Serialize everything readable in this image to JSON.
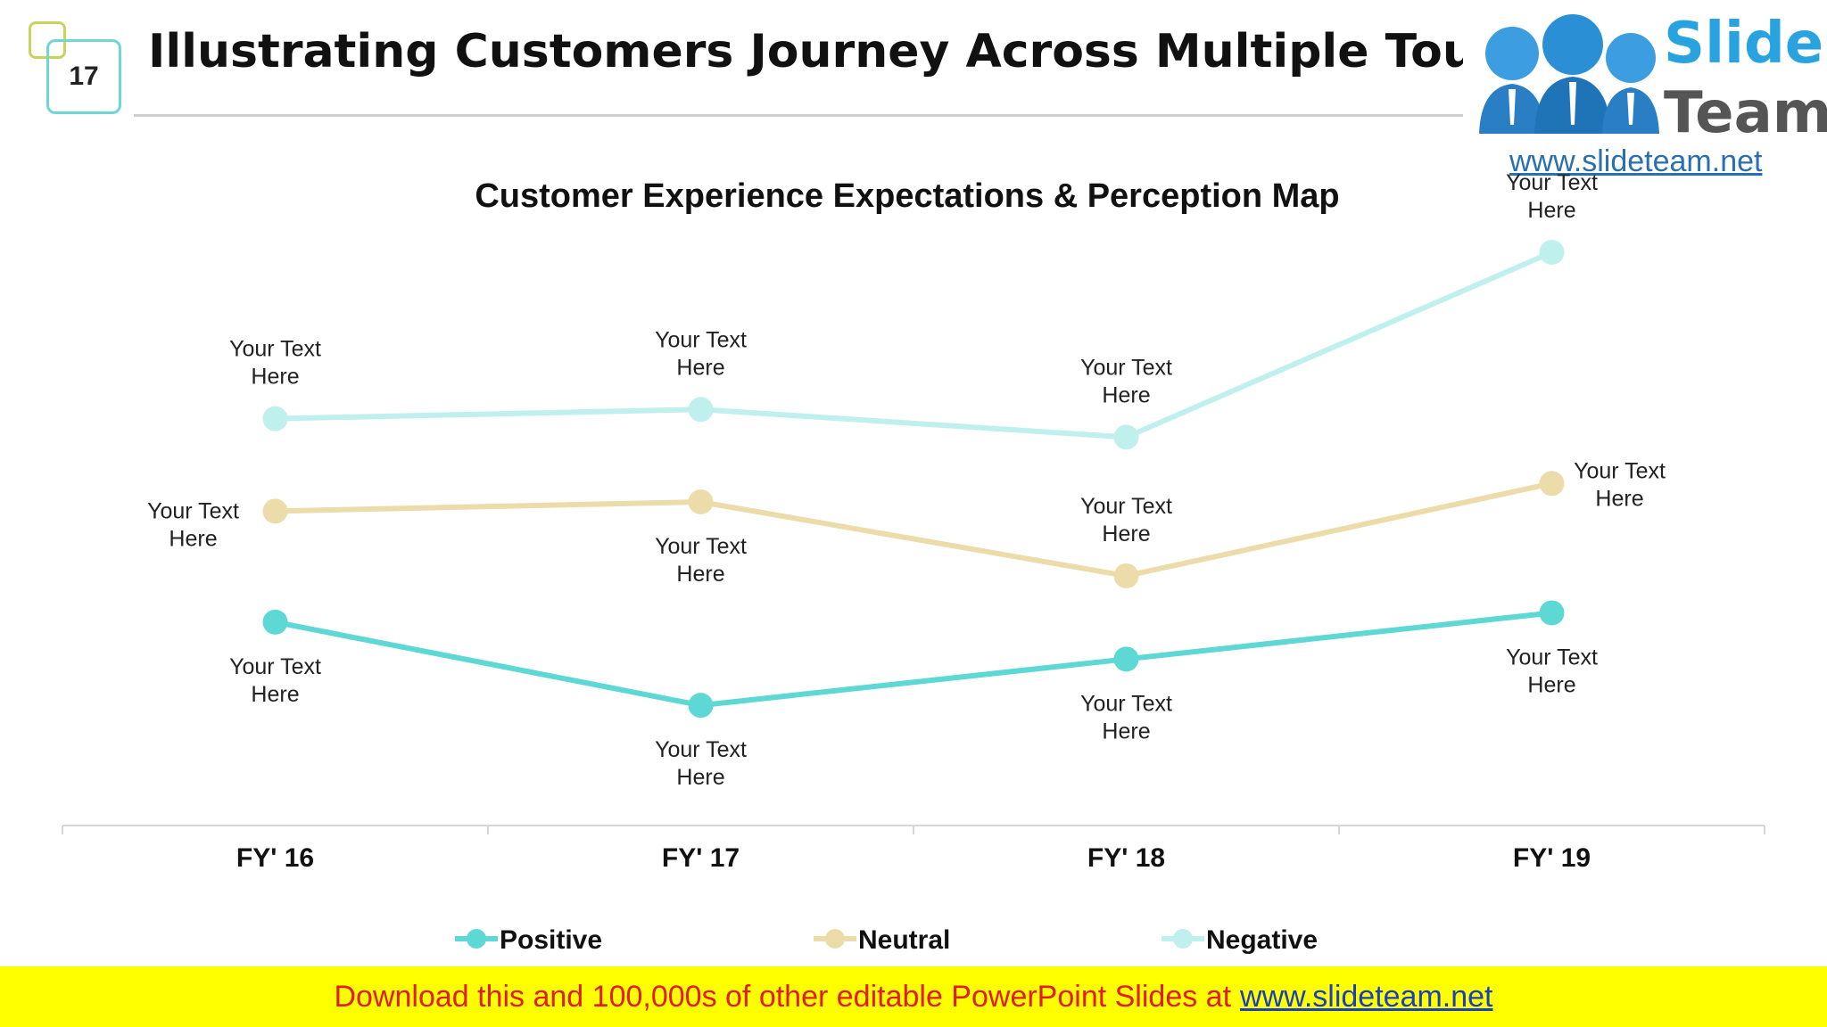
{
  "slide": {
    "number": "17",
    "title": "Illustrating Customers Journey Across Multiple Touchpoints"
  },
  "logo": {
    "word1": "Slide",
    "word2": "Team",
    "url": "www.slideteam.net"
  },
  "footer": {
    "text": "Download this and 100,000s of other editable PowerPoint Slides at",
    "link": "www.slideteam.net"
  },
  "colors": {
    "positive": "#5dd8d4",
    "neutral": "#ecdcaa",
    "negative": "#bff0ee"
  },
  "chart_data": {
    "type": "line",
    "title": "Customer Experience Expectations & Perception Map",
    "categories": [
      "FY' 16",
      "FY' 17",
      "FY' 18",
      "FY' 19"
    ],
    "series": [
      {
        "name": "Positive",
        "values": [
          2.2,
          1.3,
          1.8,
          2.3
        ],
        "labels": [
          "Your Text Here",
          "Your Text Here",
          "Your Text Here",
          "Your Text Here"
        ]
      },
      {
        "name": "Neutral",
        "values": [
          3.4,
          3.5,
          2.7,
          3.7
        ],
        "labels": [
          "Your Text Here",
          "Your Text Here",
          "Your Text Here",
          "Your Text Here"
        ]
      },
      {
        "name": "Negative",
        "values": [
          4.4,
          4.5,
          4.2,
          6.2
        ],
        "labels": [
          "Your Text Here",
          "Your Text Here",
          "Your Text Here",
          "Your Text Here"
        ]
      }
    ],
    "ylim": [
      0,
      7
    ],
    "grid": false,
    "legend": "bottom"
  }
}
